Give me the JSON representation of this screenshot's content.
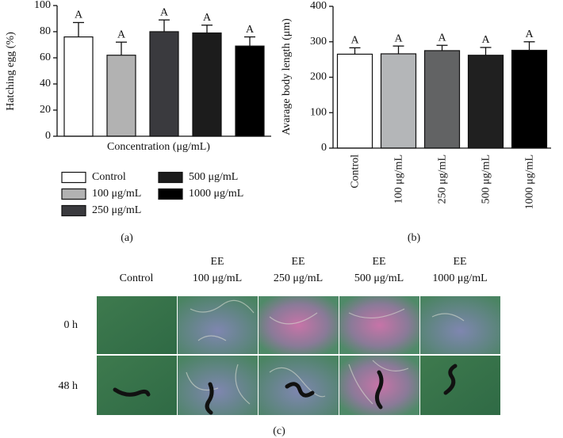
{
  "chart_data": [
    {
      "type": "bar",
      "ylabel": "Hatching egg (%)",
      "xlabel": "Concentration (μg/mL)",
      "categories": [
        "Control",
        "100 μg/mL",
        "250 μg/mL",
        "500 μg/mL",
        "1000 μg/mL"
      ],
      "values": [
        76,
        62,
        80,
        79,
        69
      ],
      "errors": [
        11,
        10,
        9,
        6,
        7
      ],
      "annotations": [
        "A",
        "A",
        "A",
        "A",
        "A"
      ],
      "colors": [
        "#ffffff",
        "#b2b2b2",
        "#3a3a3e",
        "#1c1c1c",
        "#000000"
      ],
      "ylim": [
        0,
        100
      ],
      "yticks": [
        0,
        20,
        40,
        60,
        80,
        100
      ],
      "legend": true
    },
    {
      "type": "bar",
      "ylabel": "Avarage body length (μm)",
      "categories": [
        "Control",
        "100 μg/mL",
        "250 μg/mL",
        "500 μg/mL",
        "1000 μg/mL"
      ],
      "values": [
        265,
        266,
        275,
        262,
        276
      ],
      "errors": [
        18,
        22,
        15,
        22,
        24
      ],
      "annotations": [
        "A",
        "A",
        "A",
        "A",
        "A"
      ],
      "colors": [
        "#ffffff",
        "#b4b6b8",
        "#626364",
        "#202020",
        "#000000"
      ],
      "ylim": [
        0,
        400
      ],
      "yticks": [
        0,
        100,
        200,
        300,
        400
      ],
      "legend": false
    }
  ],
  "panel_labels": [
    "(a)",
    "(b)",
    "(c)"
  ],
  "image_grid": {
    "columns": [
      [
        "Control"
      ],
      [
        "EE",
        "100 μg/mL"
      ],
      [
        "EE",
        "250 μg/mL"
      ],
      [
        "EE",
        "500 μg/mL"
      ],
      [
        "EE",
        "1000 μg/mL"
      ]
    ],
    "rows": [
      "0 h",
      "48 h"
    ]
  }
}
